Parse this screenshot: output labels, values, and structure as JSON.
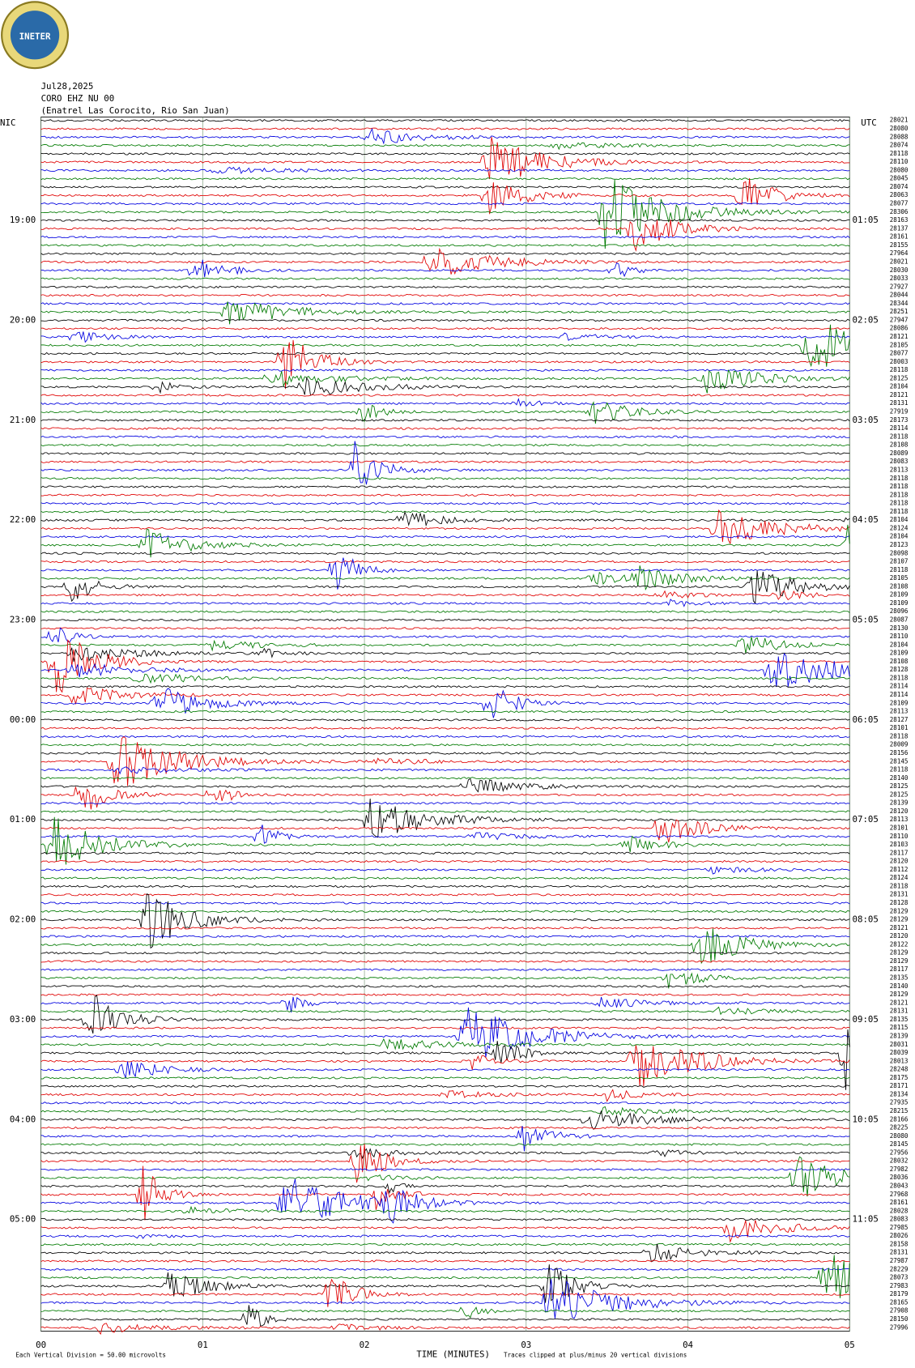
{
  "chart_data": {
    "type": "helicorder",
    "logo": "INETER",
    "title_lines": [
      "Jul28,2025",
      "CORO EHZ NU 00",
      "(Enatrel Las Corocito, Rio San Juan)"
    ],
    "left_timezone": "NIC",
    "right_timezone": "UTC",
    "left_hour_labels": [
      "19:00",
      "20:00",
      "21:00",
      "22:00",
      "23:00",
      "00:00",
      "01:00",
      "02:00",
      "03:00",
      "04:00",
      "05:00"
    ],
    "right_hour_labels": [
      "01:05",
      "02:05",
      "03:05",
      "04:05",
      "05:05",
      "06:05",
      "07:05",
      "08:05",
      "09:05",
      "10:05",
      "11:05"
    ],
    "trace_colors": [
      "#000000",
      "#e00000",
      "#0000e0",
      "#007a00"
    ],
    "trace_counts": [
      28021,
      28080,
      28088,
      28074,
      28118,
      28110,
      28080,
      28045,
      28074,
      28063,
      28077,
      28306,
      28163,
      28137,
      28161,
      28155,
      27964,
      28021,
      28030,
      28033,
      27927,
      28044,
      28344,
      28251,
      27947,
      28086,
      28121,
      28105,
      28077,
      28003,
      28118,
      28125,
      28104,
      28121,
      28131,
      27919,
      28173,
      28114,
      28118,
      28108,
      28089,
      28083,
      28113,
      28118,
      28118,
      28118,
      28118,
      28118,
      28104,
      28124,
      28104,
      28123,
      28098,
      28107,
      28118,
      28105,
      28108,
      28109,
      28109,
      28096,
      28087,
      28130,
      28110,
      28104,
      28109,
      28108,
      28128,
      28118,
      28114,
      28114,
      28109,
      28113,
      28127,
      28101,
      28118,
      28009,
      28156,
      28145,
      28118,
      28140,
      28125,
      28125,
      28139,
      28120,
      28113,
      28101,
      28110,
      28103,
      28117,
      28120,
      28112,
      28124,
      28118,
      28131,
      28128,
      28129,
      28129,
      28121,
      28120,
      28122,
      28129,
      28129,
      28117,
      28135,
      28140,
      28129,
      28121,
      28131,
      28135,
      28115,
      28139,
      28031,
      28039,
      28013,
      28248,
      28175,
      28171,
      28134,
      27935,
      28215,
      28166,
      28225,
      28080,
      28145,
      27956,
      28032,
      27982,
      28036,
      28043,
      27968,
      28161,
      28028,
      28083,
      27985,
      28026,
      28158,
      28131,
      27987,
      28229,
      28073,
      27983,
      28179,
      28165,
      27908,
      28150,
      27996
    ],
    "xlim": [
      0,
      5
    ],
    "xticks": [
      {
        "value": 0,
        "label": "00"
      },
      {
        "value": 1,
        "label": "01"
      },
      {
        "value": 2,
        "label": "02"
      },
      {
        "value": 3,
        "label": "03"
      },
      {
        "value": 4,
        "label": "04"
      },
      {
        "value": 5,
        "label": "05"
      }
    ],
    "xlabel": "TIME (MINUTES)",
    "scale_note": "Each Vertical Division =   50.00 microvolts",
    "clip_note": "Traces clipped at plus/minus 20 vertical divisions"
  }
}
